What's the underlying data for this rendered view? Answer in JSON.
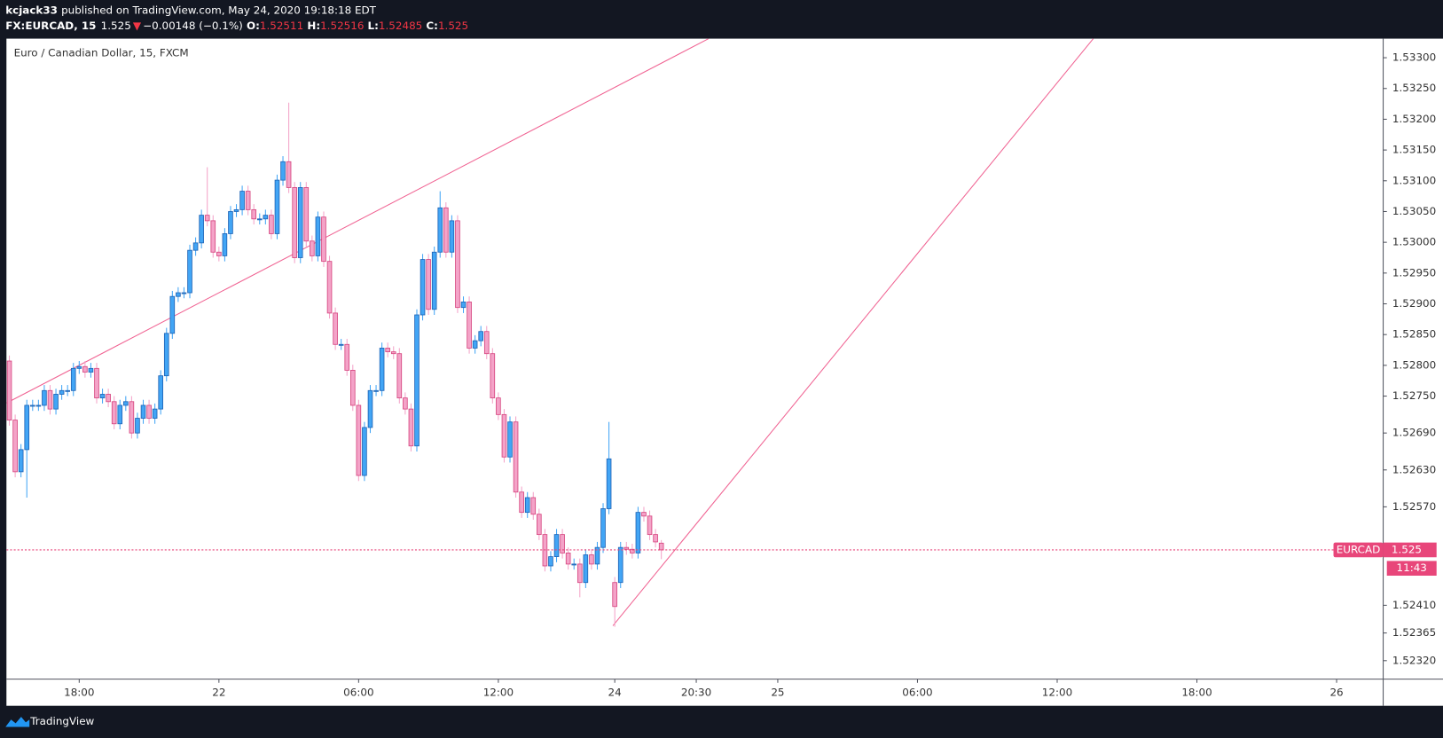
{
  "header": {
    "author": "kcjack33",
    "published": "published on TradingView.com, May 24, 2020 19:18:18 EDT",
    "symbol": "FX:EURCAD, 15",
    "arrow": "▼",
    "change": "−0.00148 (−0.1%)",
    "o": "O:",
    "h": "H:",
    "l": "L:",
    "c": "C:"
  },
  "footer": {
    "brand": "TradingView"
  },
  "chart_data": {
    "type": "candlestick",
    "title": "Euro / Canadian Dollar, 15, FXCM",
    "symbol": "EURCAD",
    "countdown": "11:43",
    "up_color": "#42a5f5",
    "up_border": "#1e63b5",
    "down_color": "#f4a3c8",
    "down_border": "#d6457f",
    "price_line_color": "#e8467a",
    "open": [
      1.52807,
      1.52711,
      1.52627,
      1.52663,
      1.52735,
      1.52735,
      1.52735,
      1.52759,
      1.52729,
      1.52753,
      1.52759,
      1.52759,
      1.52795,
      1.52798,
      1.52789,
      1.52795,
      1.52747,
      1.52753,
      1.52741,
      1.52705,
      1.52735,
      1.52741,
      1.5269,
      1.52714,
      1.52735,
      1.52714,
      1.52729,
      1.52783,
      1.52852,
      1.52912,
      1.52918,
      1.52918,
      1.52987,
      1.52999,
      1.53044,
      1.53035,
      1.52984,
      1.52978,
      1.53014,
      1.5305,
      1.53053,
      1.53083,
      1.53053,
      1.53038,
      1.53038,
      1.53044,
      1.53014,
      1.53101,
      1.53131,
      1.53089,
      1.52975,
      1.53089,
      1.53002,
      1.52978,
      1.53041,
      1.52969,
      1.52885,
      1.52834,
      1.52834,
      1.52792,
      1.52735,
      1.52621,
      1.52699,
      1.52759,
      1.52759,
      1.52828,
      1.52822,
      1.52819,
      1.52747,
      1.52729,
      1.52669,
      1.52882,
      1.52972,
      1.52891,
      1.52984,
      1.53056,
      1.52984,
      1.53035,
      1.52894,
      1.52903,
      1.52828,
      1.5284,
      1.52855,
      1.52819,
      1.52747,
      1.5272,
      1.52651,
      1.52708,
      1.52594,
      1.52561,
      1.52585,
      1.52558,
      1.52525,
      1.52474,
      1.52489,
      1.52525,
      1.52495,
      1.52477,
      1.52477,
      1.52447,
      1.52492,
      1.52477,
      1.52504,
      1.52567,
      1.52447,
      1.52447,
      1.52504,
      1.52501,
      1.52495,
      1.52561,
      1.52555,
      1.52525,
      1.52511
    ],
    "high": [
      1.52816,
      1.5272,
      1.52672,
      1.52744,
      1.52744,
      1.52744,
      1.52768,
      1.52768,
      1.52762,
      1.52768,
      1.52768,
      1.52804,
      1.52807,
      1.52807,
      1.52804,
      1.52804,
      1.52762,
      1.52762,
      1.5275,
      1.52744,
      1.5275,
      1.5275,
      1.52723,
      1.52744,
      1.52744,
      1.52738,
      1.52792,
      1.52861,
      1.52921,
      1.52927,
      1.52927,
      1.52996,
      1.53008,
      1.53053,
      1.53122,
      1.53044,
      1.52993,
      1.53023,
      1.53059,
      1.53062,
      1.53092,
      1.53092,
      1.53062,
      1.53047,
      1.53053,
      1.53053,
      1.5311,
      1.5314,
      1.53227,
      1.53098,
      1.53098,
      1.53098,
      1.53011,
      1.5305,
      1.5305,
      1.52978,
      1.52894,
      1.52843,
      1.52843,
      1.52801,
      1.52744,
      1.52708,
      1.52768,
      1.52768,
      1.52837,
      1.52837,
      1.52831,
      1.52828,
      1.52756,
      1.52738,
      1.52891,
      1.52981,
      1.52981,
      1.52993,
      1.53083,
      1.53065,
      1.53044,
      1.53044,
      1.52912,
      1.52912,
      1.52849,
      1.52864,
      1.52864,
      1.52828,
      1.52756,
      1.52729,
      1.52717,
      1.52717,
      1.52603,
      1.52594,
      1.52594,
      1.52567,
      1.52534,
      1.52498,
      1.52534,
      1.52534,
      1.52504,
      1.52486,
      1.52486,
      1.52501,
      1.52501,
      1.52513,
      1.52576,
      1.52708,
      1.52456,
      1.52513,
      1.52513,
      1.5251,
      1.5257,
      1.5257,
      1.52564,
      1.52534,
      1.52516
    ],
    "low": [
      1.52702,
      1.52618,
      1.52618,
      1.52585,
      1.52726,
      1.52726,
      1.52726,
      1.5272,
      1.5272,
      1.52744,
      1.5275,
      1.5275,
      1.52786,
      1.5278,
      1.5278,
      1.52738,
      1.52738,
      1.52732,
      1.52696,
      1.52696,
      1.52726,
      1.52681,
      1.52681,
      1.52705,
      1.52705,
      1.52705,
      1.5272,
      1.52774,
      1.52843,
      1.52903,
      1.52909,
      1.52909,
      1.52978,
      1.5299,
      1.53026,
      1.52975,
      1.52969,
      1.52969,
      1.53005,
      1.53041,
      1.53044,
      1.53044,
      1.53029,
      1.53029,
      1.53029,
      1.53005,
      1.53005,
      1.53092,
      1.5308,
      1.52966,
      1.52966,
      1.52993,
      1.52969,
      1.52969,
      1.5296,
      1.52876,
      1.52825,
      1.52825,
      1.52783,
      1.52726,
      1.52612,
      1.52612,
      1.5269,
      1.5275,
      1.5275,
      1.52813,
      1.5281,
      1.52738,
      1.5272,
      1.5266,
      1.5266,
      1.52873,
      1.52882,
      1.52882,
      1.52975,
      1.52975,
      1.52975,
      1.52885,
      1.52885,
      1.52819,
      1.52819,
      1.52831,
      1.5281,
      1.52738,
      1.52711,
      1.52642,
      1.52642,
      1.52585,
      1.52552,
      1.52552,
      1.52549,
      1.52516,
      1.52465,
      1.52465,
      1.5248,
      1.52486,
      1.52468,
      1.52468,
      1.52423,
      1.52438,
      1.52468,
      1.52468,
      1.52495,
      1.52558,
      1.52375,
      1.52438,
      1.52492,
      1.52486,
      1.52486,
      1.52546,
      1.52516,
      1.52504,
      1.52485
    ],
    "close": [
      1.52711,
      1.52627,
      1.52663,
      1.52735,
      1.52735,
      1.52735,
      1.52759,
      1.52729,
      1.52753,
      1.52759,
      1.52759,
      1.52795,
      1.52798,
      1.52789,
      1.52795,
      1.52747,
      1.52753,
      1.52741,
      1.52705,
      1.52735,
      1.52741,
      1.5269,
      1.52714,
      1.52735,
      1.52714,
      1.52729,
      1.52783,
      1.52852,
      1.52912,
      1.52918,
      1.52918,
      1.52987,
      1.52999,
      1.53044,
      1.53035,
      1.52984,
      1.52978,
      1.53014,
      1.5305,
      1.53053,
      1.53083,
      1.53053,
      1.53038,
      1.53038,
      1.53044,
      1.53014,
      1.53101,
      1.53131,
      1.53089,
      1.52975,
      1.53089,
      1.53002,
      1.52978,
      1.53041,
      1.52969,
      1.52885,
      1.52834,
      1.52834,
      1.52792,
      1.52735,
      1.52621,
      1.52699,
      1.52759,
      1.52759,
      1.52828,
      1.52822,
      1.52819,
      1.52747,
      1.52729,
      1.52669,
      1.52882,
      1.52972,
      1.52891,
      1.52984,
      1.53056,
      1.52984,
      1.53035,
      1.52894,
      1.52903,
      1.52828,
      1.5284,
      1.52855,
      1.52819,
      1.52747,
      1.5272,
      1.52651,
      1.52708,
      1.52594,
      1.52561,
      1.52585,
      1.52558,
      1.52525,
      1.52474,
      1.52489,
      1.52525,
      1.52495,
      1.52477,
      1.52477,
      1.52447,
      1.52492,
      1.52477,
      1.52504,
      1.52567,
      1.52648,
      1.52408,
      1.52504,
      1.52501,
      1.52495,
      1.52561,
      1.52555,
      1.52525,
      1.52513,
      1.525
    ],
    "ylim": [
      1.5229,
      1.53331
    ],
    "yticks": [
      {
        "value": 1.533,
        "label": "1.53300"
      },
      {
        "value": 1.5325,
        "label": "1.53250"
      },
      {
        "value": 1.532,
        "label": "1.53200"
      },
      {
        "value": 1.5315,
        "label": "1.53150"
      },
      {
        "value": 1.531,
        "label": "1.53100"
      },
      {
        "value": 1.5305,
        "label": "1.53050"
      },
      {
        "value": 1.53,
        "label": "1.53000"
      },
      {
        "value": 1.5295,
        "label": "1.52950"
      },
      {
        "value": 1.529,
        "label": "1.52900"
      },
      {
        "value": 1.5285,
        "label": "1.52850"
      },
      {
        "value": 1.528,
        "label": "1.52800"
      },
      {
        "value": 1.5275,
        "label": "1.52750"
      },
      {
        "value": 1.5269,
        "label": "1.52690"
      },
      {
        "value": 1.5263,
        "label": "1.52630"
      },
      {
        "value": 1.5257,
        "label": "1.52570"
      },
      {
        "value": 1.5241,
        "label": "1.52410"
      },
      1.52365,
      {
        "value": 1.5232,
        "label": "1.52320"
      }
    ],
    "xlim": [
      -0.5,
      236
    ],
    "xticks": [
      {
        "value": 12,
        "label": "18:00"
      },
      {
        "value": 36,
        "label": "22"
      },
      {
        "value": 60,
        "label": "06:00"
      },
      {
        "value": 84,
        "label": "12:00"
      },
      {
        "value": 104,
        "label": "24"
      },
      {
        "value": 118,
        "label": "20:30"
      },
      {
        "value": 132,
        "label": "25"
      },
      {
        "value": 156,
        "label": "06:00"
      },
      {
        "value": 180,
        "label": "12:00"
      },
      {
        "value": 204,
        "label": "18:00"
      },
      {
        "value": 228,
        "label": "26"
      }
    ]
  }
}
